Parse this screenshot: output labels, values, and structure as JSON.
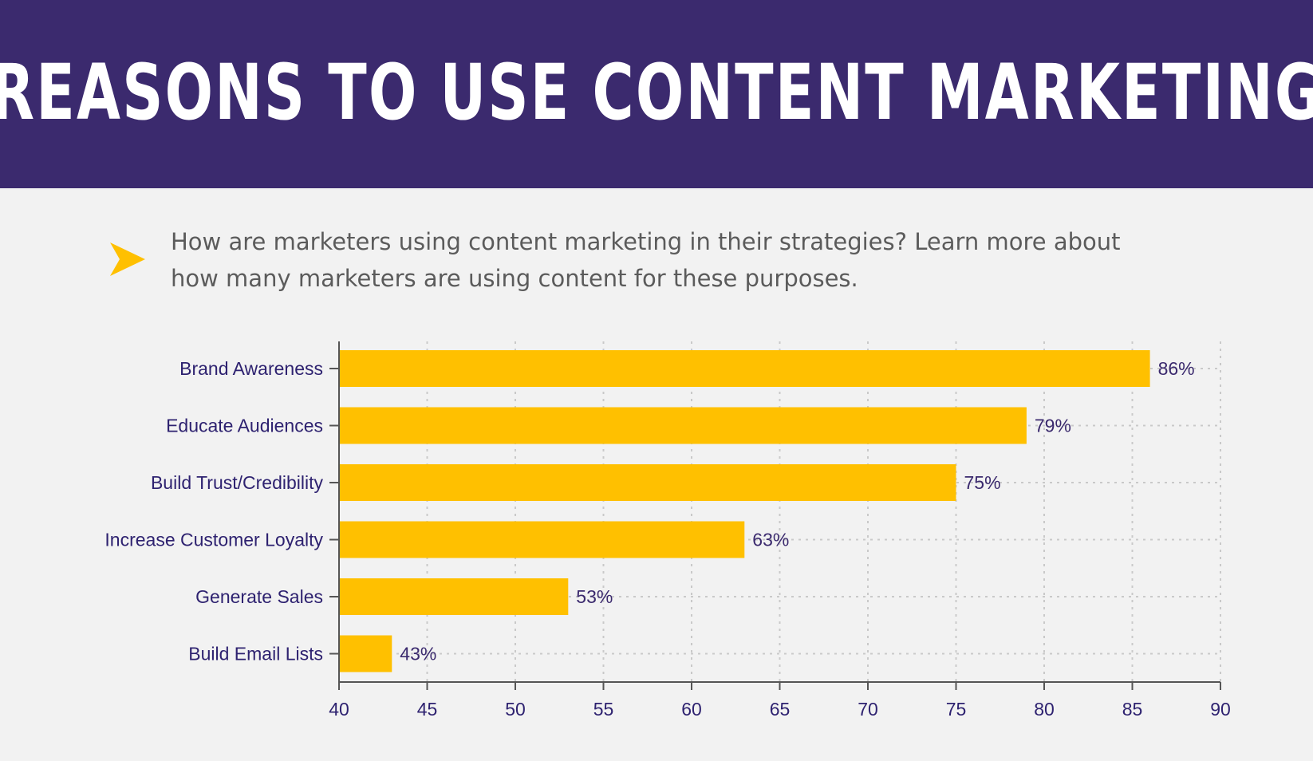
{
  "header": {
    "title": "REASONS TO USE CONTENT MARKETING"
  },
  "intro": {
    "text": "How are marketers using content marketing in their strategies? Learn more about how many marketers are using content for these purposes."
  },
  "colors": {
    "header_bg": "#3b2a6e",
    "background": "#f2f2f2",
    "bar": "#ffc000",
    "arrow": "#ffc000",
    "text_dark": "#2e2270"
  },
  "icons": {
    "intro_marker": "arrow-right-icon"
  },
  "chart_data": {
    "type": "bar",
    "orientation": "horizontal",
    "categories": [
      "Brand Awareness",
      "Educate Audiences",
      "Build Trust/Credibility",
      "Increase Customer Loyalty",
      "Generate Sales",
      "Build Email Lists"
    ],
    "values": [
      86,
      79,
      75,
      63,
      53,
      43
    ],
    "value_labels": [
      "86%",
      "79%",
      "75%",
      "63%",
      "53%",
      "43%"
    ],
    "xlim": [
      40,
      90
    ],
    "xticks": [
      40,
      45,
      50,
      55,
      60,
      65,
      70,
      75,
      80,
      85,
      90
    ],
    "xtick_labels": [
      "40",
      "45",
      "50",
      "55",
      "60",
      "65",
      "70",
      "75",
      "80",
      "85",
      "90"
    ],
    "grid": true,
    "grid_style": "dotted"
  }
}
